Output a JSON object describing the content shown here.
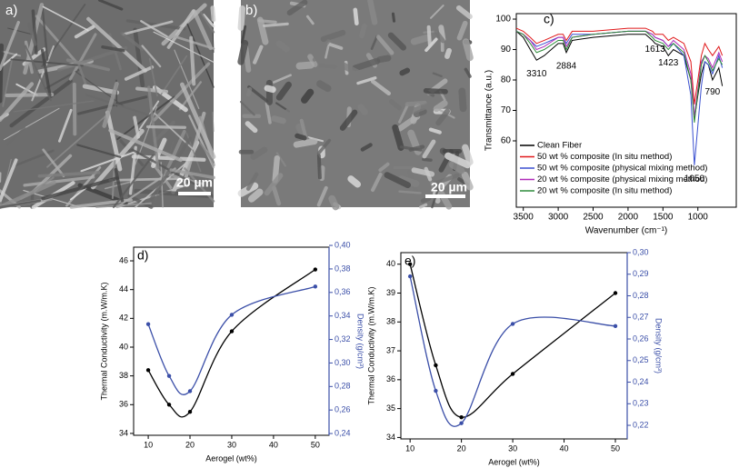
{
  "images": [
    {
      "label": "a)",
      "scale_bar": "20 µm"
    },
    {
      "label": "b)",
      "scale_bar": "20 µm"
    }
  ],
  "chart_data": [
    {
      "type": "line",
      "label": "c)",
      "x_label": "Wavenumber (cm⁻¹)",
      "y_label": "Transmittance (a.u.)",
      "x": [
        3600,
        3500,
        3400,
        3310,
        3200,
        3000,
        2930,
        2884,
        2800,
        2500,
        2000,
        1750,
        1650,
        1613,
        1500,
        1423,
        1350,
        1200,
        1100,
        1050,
        1000,
        950,
        900,
        850,
        790,
        700,
        650
      ],
      "xlim": [
        3600,
        450
      ],
      "xticks": [
        3500,
        3000,
        2500,
        2000,
        1500,
        1000
      ],
      "ylim": [
        38.2,
        101.8
      ],
      "yticks": [
        60,
        70,
        80,
        90,
        100
      ],
      "series": [
        {
          "name": "Clean Fiber",
          "color": "#000000",
          "values": [
            96,
            94,
            90,
            86.5,
            88,
            92,
            92,
            89,
            93,
            94,
            95,
            95,
            93,
            92,
            91,
            88,
            90,
            88,
            80,
            67,
            75,
            82,
            86,
            85,
            80,
            84,
            78
          ]
        },
        {
          "name": "50 wt % composite (In situ method)",
          "color": "#e0191b",
          "values": [
            97,
            96,
            94,
            92,
            93,
            95,
            95,
            93,
            96,
            96,
            97,
            97,
            96,
            95,
            95,
            93,
            94,
            92,
            86,
            72,
            80,
            88,
            92,
            90,
            88,
            91,
            88
          ]
        },
        {
          "name": "50 wt % composite (physical mixing method)",
          "color": "#3a4fd0",
          "values": [
            96,
            95,
            93,
            91,
            92,
            94,
            94,
            92,
            95,
            95,
            96,
            96,
            95,
            94,
            93,
            91,
            92,
            88,
            75,
            52,
            65,
            78,
            86,
            85,
            82,
            88,
            84
          ]
        },
        {
          "name": "20 wt % composite (physical mixing method)",
          "color": "#b02cb8",
          "values": [
            96,
            95,
            93,
            90,
            91,
            94,
            94,
            91,
            94,
            95,
            96,
            96,
            95,
            94,
            93,
            91,
            93,
            90,
            82,
            68,
            77,
            86,
            88,
            87,
            84,
            89,
            86
          ]
        },
        {
          "name": "20 wt % composite (In situ method)",
          "color": "#2e8b3a",
          "values": [
            96,
            95,
            92,
            89,
            90,
            93,
            93,
            90,
            94,
            95,
            96,
            96,
            94,
            93,
            92,
            90,
            92,
            89,
            80,
            66,
            76,
            85,
            88,
            86,
            83,
            87,
            85
          ]
        }
      ],
      "annotations": [
        {
          "text": "3310",
          "x": 3310,
          "y": 82
        },
        {
          "text": "2884",
          "x": 2884,
          "y": 84.5
        },
        {
          "text": "1613",
          "x": 1613,
          "y": 90
        },
        {
          "text": "1423",
          "x": 1423,
          "y": 85.5
        },
        {
          "text": "1050",
          "x": 1050,
          "y": 47.5
        },
        {
          "text": "790",
          "x": 790,
          "y": 76
        }
      ]
    },
    {
      "type": "line",
      "label": "d)",
      "x_label": "Aerogel (wt%)",
      "y_label": "Thermal Conductivity (m.W/m.K)",
      "y2_label": "Density (g/cm³)",
      "x": [
        10,
        15,
        20,
        30,
        50
      ],
      "xlim": [
        6.5,
        53.3
      ],
      "xticks": [
        10,
        20,
        30,
        40,
        50
      ],
      "ylim": [
        33.87,
        46.95
      ],
      "yticks": [
        34,
        36,
        38,
        40,
        42,
        44,
        46
      ],
      "y2lim": [
        0.2385,
        0.3985
      ],
      "y2ticks": [
        {
          "value": 0.24,
          "label": "0,24"
        },
        {
          "value": 0.26,
          "label": "0,26"
        },
        {
          "value": 0.28,
          "label": "0,28"
        },
        {
          "value": 0.3,
          "label": "0,30"
        },
        {
          "value": 0.32,
          "label": "0,32"
        },
        {
          "value": 0.34,
          "label": "0,34"
        },
        {
          "value": 0.36,
          "label": "0,36"
        },
        {
          "value": 0.38,
          "label": "0,38"
        },
        {
          "value": 0.4,
          "label": "0,40"
        }
      ],
      "y2color": "#3b4fa8",
      "smooth": true,
      "markers": true,
      "series": [
        {
          "color": "#000000",
          "values": [
            38.4,
            36.0,
            35.5,
            41.1,
            45.4
          ]
        },
        {
          "color": "#3b4fa8",
          "axis": "y2",
          "values": [
            0.333,
            0.289,
            0.276,
            0.341,
            0.365
          ]
        }
      ]
    },
    {
      "type": "line",
      "label": "e)",
      "x_label": "Aerogel (wt%)",
      "y_label": "Thermal Conductivity (m.W/m.K)",
      "y2_label": "Density (g/cm³)",
      "x": [
        10,
        15,
        20,
        30,
        50
      ],
      "xlim": [
        8.2,
        52.3
      ],
      "xticks": [
        10,
        20,
        30,
        40,
        50
      ],
      "ylim": [
        33.95,
        40.4
      ],
      "yticks": [
        34,
        35,
        36,
        37,
        38,
        39,
        40
      ],
      "y2lim": [
        0.2137,
        0.3
      ],
      "y2ticks": [
        {
          "value": 0.22,
          "label": "0,22"
        },
        {
          "value": 0.23,
          "label": "0,23"
        },
        {
          "value": 0.24,
          "label": "0,24"
        },
        {
          "value": 0.25,
          "label": "0,25"
        },
        {
          "value": 0.26,
          "label": "0,26"
        },
        {
          "value": 0.27,
          "label": "0,27"
        },
        {
          "value": 0.28,
          "label": "0,28"
        },
        {
          "value": 0.29,
          "label": "0,29"
        },
        {
          "value": 0.3,
          "label": "0,30"
        }
      ],
      "y2color": "#3b4fa8",
      "smooth": true,
      "markers": true,
      "series": [
        {
          "color": "#000000",
          "values": [
            40.0,
            36.5,
            34.7,
            36.2,
            39.0
          ]
        },
        {
          "color": "#3b4fa8",
          "axis": "y2",
          "values": [
            0.289,
            0.236,
            0.221,
            0.267,
            0.266
          ]
        }
      ]
    }
  ]
}
